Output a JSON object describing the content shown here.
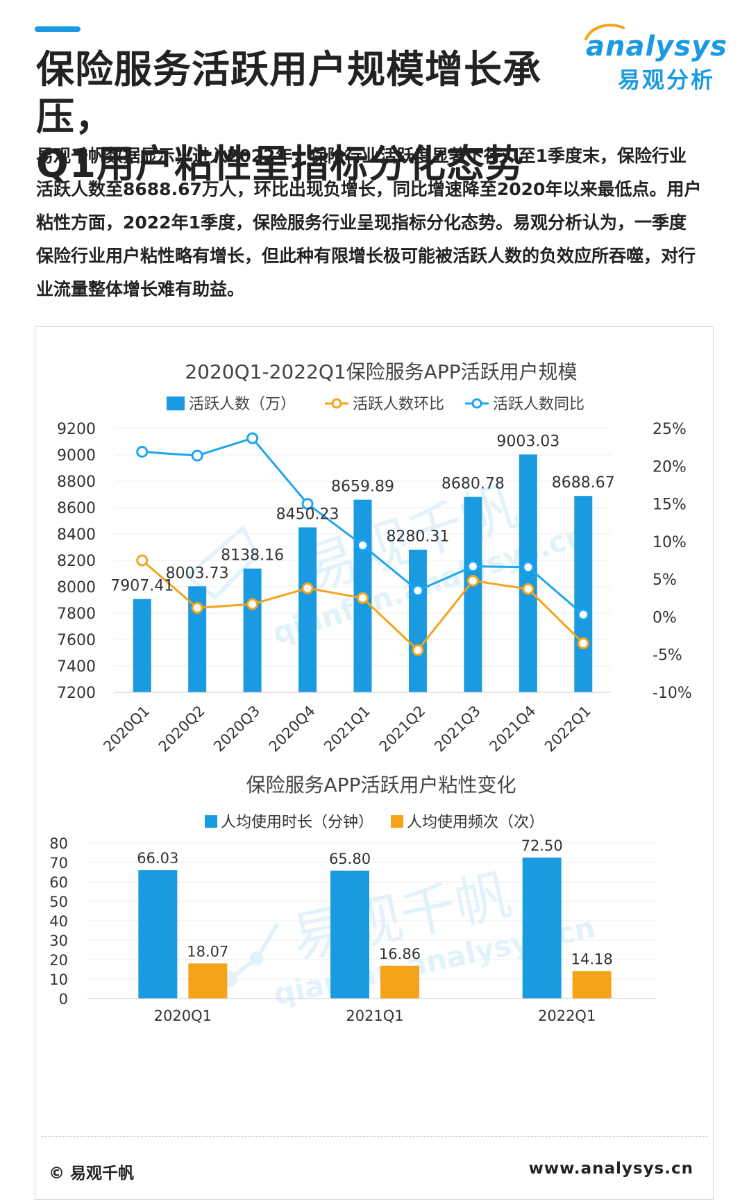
{
  "header": {
    "title_line1": "保险服务活跃用户规模增长承压，",
    "title_line2": "Q1用户粘性呈指标分化态势",
    "intro": "易观千帆数据显示，进入2022年，保险行业活跃度显著下行，至1季度末，保险行业活跃人数至8688.67万人，环比出现负增长，同比增速降至2020年以来最低点。用户粘性方面，2022年1季度，保险服务行业呈现指标分化态势。易观分析认为，一季度保险行业用户粘性略有增长，但此种有限增长极可能被活跃人数的负效应所吞噬，对行业流量整体增长难有助益。"
  },
  "logo": {
    "word": "nalysys",
    "letter": "a",
    "cn": "易观分析"
  },
  "watermark": {
    "cn": "易观千帆",
    "url": "qianfan.analysys.cn"
  },
  "footer": {
    "left": "© 易观千帆",
    "right": "www.analysys.cn"
  },
  "colors": {
    "blue": "#1a9ae0",
    "orange": "#f5a31a",
    "line_blue": "#1ea5f0"
  },
  "chart_data": [
    {
      "type": "bar",
      "title": "2020Q1-2022Q1保险服务APP活跃用户规模",
      "categories": [
        "2020Q1",
        "2020Q2",
        "2020Q3",
        "2020Q4",
        "2021Q1",
        "2021Q2",
        "2021Q3",
        "2021Q4",
        "2022Q1"
      ],
      "series": [
        {
          "name": "活跃人数（万）",
          "kind": "bar",
          "axis": "left",
          "values": [
            7907.41,
            8003.73,
            8138.16,
            8450.23,
            8659.89,
            8280.31,
            8680.78,
            9003.03,
            8688.67
          ],
          "labels": [
            "7907.41",
            "8003.73",
            "8138.16",
            "8450.23",
            "8659.89",
            "8280.31",
            "8680.78",
            "9003.03",
            "8688.67"
          ]
        },
        {
          "name": "活跃人数环比",
          "kind": "line",
          "axis": "right",
          "values": [
            7.5,
            1.2,
            1.7,
            3.8,
            2.5,
            -4.4,
            4.8,
            3.7,
            -3.5
          ]
        },
        {
          "name": "活跃人数同比",
          "kind": "line",
          "axis": "right",
          "values": [
            21.9,
            21.4,
            23.7,
            15.0,
            9.5,
            3.5,
            6.7,
            6.6,
            0.3
          ]
        }
      ],
      "ylim": [
        7200,
        9200
      ],
      "yticks": [
        "7200",
        "7400",
        "7600",
        "7800",
        "8000",
        "8200",
        "8400",
        "8600",
        "8800",
        "9000",
        "9200"
      ],
      "y2lim": [
        -10,
        25
      ],
      "y2ticks": [
        "-10%",
        "-5%",
        "0%",
        "5%",
        "10%",
        "15%",
        "20%",
        "25%"
      ],
      "legend": "top"
    },
    {
      "type": "bar",
      "title": "保险服务APP活跃用户粘性变化",
      "categories": [
        "2020Q1",
        "2021Q1",
        "2022Q1"
      ],
      "series": [
        {
          "name": "人均使用时长（分钟）",
          "values": [
            66.03,
            65.8,
            72.5
          ],
          "labels": [
            "66.03",
            "65.80",
            "72.50"
          ]
        },
        {
          "name": "人均使用频次（次）",
          "values": [
            18.07,
            16.86,
            14.18
          ],
          "labels": [
            "18.07",
            "16.86",
            "14.18"
          ]
        }
      ],
      "ylim": [
        0,
        80
      ],
      "yticks": [
        "0",
        "10",
        "20",
        "30",
        "40",
        "50",
        "60",
        "70",
        "80"
      ],
      "legend": "top"
    }
  ]
}
